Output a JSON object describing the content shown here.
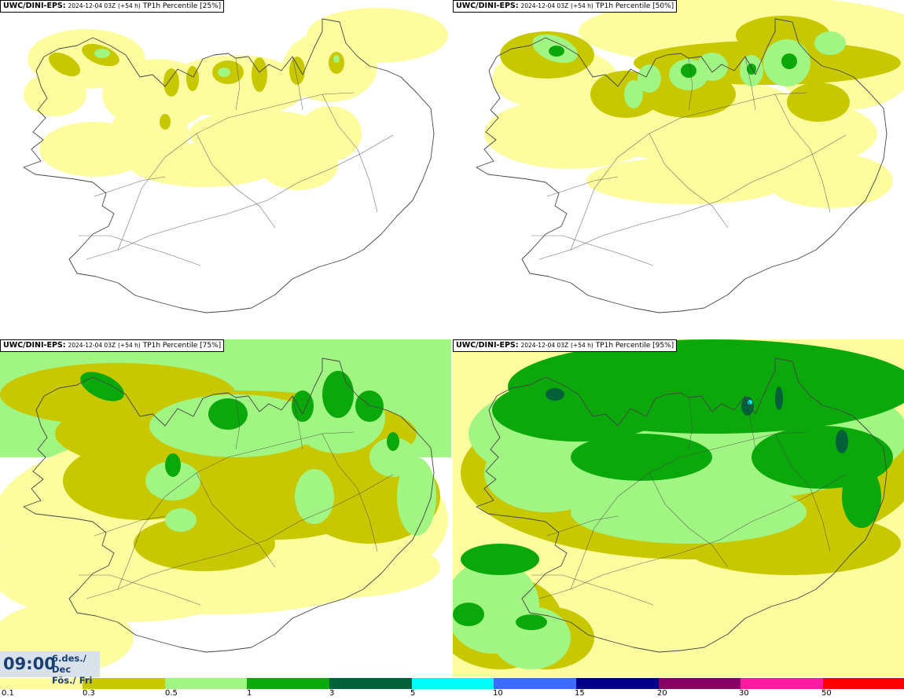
{
  "panels": [
    {
      "model": "UWC/DINI-EPS:",
      "run": "2024-12-04 03Z",
      "lead": "(+54 h)",
      "variable": "TP1h Percentile [25%]"
    },
    {
      "model": "UWC/DINI-EPS:",
      "run": "2024-12-04 03Z",
      "lead": "(+54 h)",
      "variable": "TP1h Percentile [50%]"
    },
    {
      "model": "UWC/DINI-EPS:",
      "run": "2024-12-04 03Z",
      "lead": "(+54 h)",
      "variable": "TP1h Percentile [75%]"
    },
    {
      "model": "UWC/DINI-EPS:",
      "run": "2024-12-04 03Z",
      "lead": "(+54 h)",
      "variable": "TP1h Percentile [95%]"
    }
  ],
  "valid_time": {
    "clock": "09:00",
    "date_line1": "6.des./ Dec",
    "date_line2": "Fös./ Fri"
  },
  "legend": {
    "bins": [
      {
        "color": "#fdfd9f"
      },
      {
        "color": "#c8c800"
      },
      {
        "color": "#a1f582"
      },
      {
        "color": "#0ba80b"
      },
      {
        "color": "#03613a"
      },
      {
        "color": "#00fbfb"
      },
      {
        "color": "#3d6cfb"
      },
      {
        "color": "#020087"
      },
      {
        "color": "#850062"
      },
      {
        "color": "#fb1aa0"
      },
      {
        "color": "#fb0000"
      }
    ],
    "ticks": [
      "0.1",
      "0.3",
      "0.5",
      "1",
      "3",
      "5",
      "10",
      "15",
      "20",
      "30",
      "50"
    ]
  },
  "colors": {
    "background": "#ffffff",
    "coastline": "#444444",
    "time_text": "#1a3f73",
    "time_box": "#d9e2ea"
  }
}
